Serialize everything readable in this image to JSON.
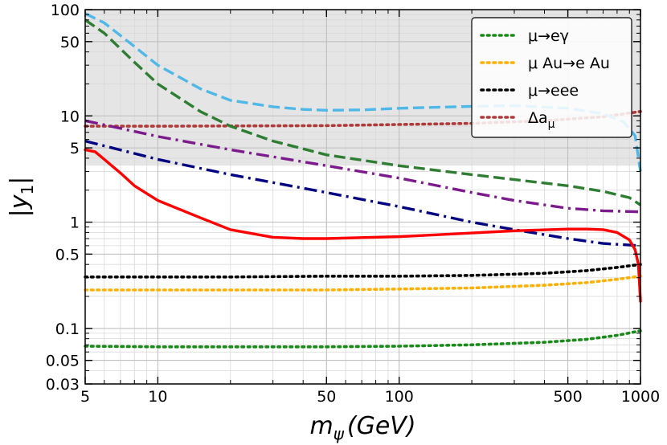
{
  "chart_data": {
    "type": "line",
    "xscale": "log",
    "yscale": "log",
    "xlim": [
      5,
      1000
    ],
    "ylim": [
      0.03,
      100
    ],
    "xlabel": {
      "main": "m",
      "sub": "ψ",
      "unit": "(GeV)"
    },
    "ylabel": {
      "main": "|y",
      "sub": "1",
      "close": "|"
    },
    "xticks": [
      {
        "value": 5,
        "label": "5"
      },
      {
        "value": 10,
        "label": "10"
      },
      {
        "value": 50,
        "label": "50"
      },
      {
        "value": 100,
        "label": "100"
      },
      {
        "value": 500,
        "label": "500"
      },
      {
        "value": 1000,
        "label": "1000"
      }
    ],
    "yticks": [
      {
        "value": 0.03,
        "label": "0.03"
      },
      {
        "value": 0.05,
        "label": "0.05"
      },
      {
        "value": 0.1,
        "label": "0.1"
      },
      {
        "value": 0.5,
        "label": "0.5"
      },
      {
        "value": 1,
        "label": "1"
      },
      {
        "value": 5,
        "label": "5"
      },
      {
        "value": 10,
        "label": "10"
      },
      {
        "value": 50,
        "label": "50"
      },
      {
        "value": 100,
        "label": "100"
      }
    ],
    "excluded_region": {
      "y_from": 3.4,
      "y_to": 100,
      "color": "#e5e5e5"
    },
    "legend": {
      "position": "top-right",
      "entries": [
        {
          "text": "μ→eγ",
          "color": "#1a8a1a",
          "dash": "dotted"
        },
        {
          "text": "μ Au→e Au",
          "color": "#ffb000",
          "dash": "dotted"
        },
        {
          "text": "μ→eee",
          "color": "#000000",
          "dash": "dotted"
        },
        {
          "text": "Δa",
          "sub": "μ",
          "color": "#b03a3a",
          "dash": "dotted"
        }
      ]
    },
    "series": [
      {
        "name": "mu-e-gamma-bound",
        "color": "#1a8a1a",
        "dash": "dotted",
        "x": [
          5,
          10,
          20,
          50,
          100,
          200,
          400,
          600,
          800,
          1000
        ],
        "y": [
          0.068,
          0.067,
          0.067,
          0.067,
          0.068,
          0.07,
          0.074,
          0.079,
          0.086,
          0.095
        ]
      },
      {
        "name": "mu-au-conversion-bound",
        "color": "#ffb000",
        "dash": "dotted",
        "x": [
          5,
          10,
          20,
          50,
          100,
          200,
          400,
          600,
          800,
          1000
        ],
        "y": [
          0.23,
          0.23,
          0.23,
          0.23,
          0.235,
          0.24,
          0.255,
          0.27,
          0.29,
          0.31
        ]
      },
      {
        "name": "mu-eee-bound",
        "color": "#000000",
        "dash": "dotted",
        "x": [
          5,
          10,
          20,
          50,
          100,
          200,
          400,
          600,
          800,
          1000
        ],
        "y": [
          0.305,
          0.305,
          0.305,
          0.31,
          0.31,
          0.315,
          0.33,
          0.35,
          0.375,
          0.4
        ]
      },
      {
        "name": "delta-a-mu-bound",
        "color": "#b03a3a",
        "dash": "dotted",
        "x": [
          5,
          10,
          50,
          100,
          200,
          400,
          700,
          1000
        ],
        "y": [
          8.0,
          8.0,
          8.1,
          8.3,
          8.5,
          9.0,
          9.8,
          11.0
        ]
      },
      {
        "name": "light-blue-dashed",
        "color": "#4fb8e6",
        "dash": "dashed",
        "x": [
          5,
          6,
          8,
          10,
          15,
          20,
          30,
          40,
          50,
          70,
          100,
          200,
          300,
          500,
          700,
          850,
          950,
          1000
        ],
        "y": [
          92,
          75,
          45,
          30,
          18,
          14,
          12.2,
          11.5,
          11.3,
          11.4,
          11.8,
          12.3,
          12.5,
          11.8,
          10.5,
          8.8,
          6.5,
          3.0
        ]
      },
      {
        "name": "green-dashed",
        "color": "#2e7d32",
        "dash": "dashed",
        "x": [
          5,
          6,
          8,
          10,
          15,
          20,
          30,
          50,
          100,
          200,
          500,
          700,
          900,
          1000
        ],
        "y": [
          80,
          60,
          32,
          20,
          11,
          8.0,
          5.8,
          4.3,
          3.4,
          2.8,
          2.2,
          1.95,
          1.7,
          1.45
        ]
      },
      {
        "name": "purple-dash-dot",
        "color": "#7b1a8a",
        "dash": "dashdot",
        "x": [
          5,
          10,
          20,
          50,
          100,
          200,
          300,
          500,
          700,
          1000
        ],
        "y": [
          9.0,
          6.4,
          4.8,
          3.4,
          2.6,
          1.9,
          1.6,
          1.35,
          1.28,
          1.25
        ]
      },
      {
        "name": "navy-dash-dot",
        "color": "#000080",
        "dash": "dashdot",
        "x": [
          5,
          10,
          20,
          50,
          100,
          200,
          300,
          500,
          700,
          1000
        ],
        "y": [
          5.8,
          3.9,
          2.8,
          1.9,
          1.4,
          1.0,
          0.85,
          0.7,
          0.63,
          0.6
        ]
      },
      {
        "name": "red-solid",
        "color": "#ff0000",
        "dash": "solid",
        "x": [
          5,
          5.5,
          6,
          7,
          8,
          10,
          15,
          20,
          30,
          40,
          50,
          100,
          200,
          300,
          500,
          600,
          700,
          800,
          900,
          950,
          980,
          1000
        ],
        "y": [
          4.8,
          4.6,
          3.9,
          2.9,
          2.2,
          1.6,
          1.1,
          0.85,
          0.72,
          0.7,
          0.7,
          0.73,
          0.79,
          0.83,
          0.86,
          0.86,
          0.85,
          0.8,
          0.68,
          0.55,
          0.4,
          0.18
        ]
      }
    ]
  }
}
